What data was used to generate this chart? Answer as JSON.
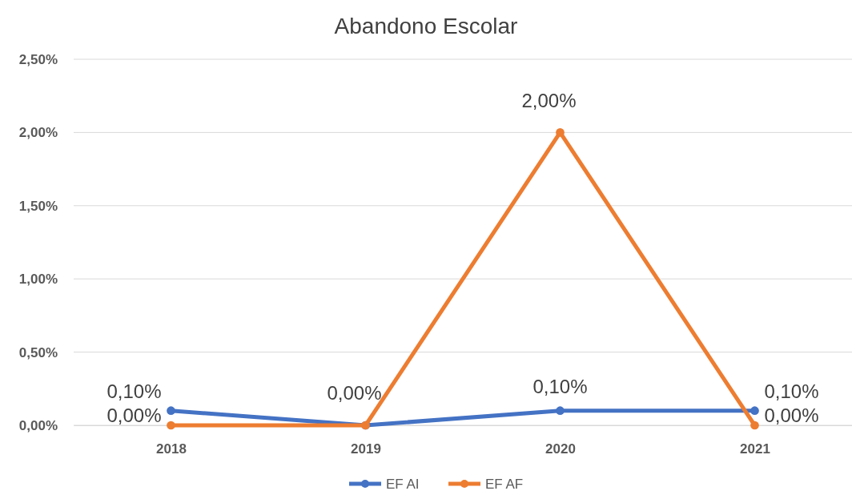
{
  "chart_data": {
    "type": "line",
    "title": "Abandono Escolar",
    "categories": [
      "2018",
      "2019",
      "2020",
      "2021"
    ],
    "series": [
      {
        "name": "EF AI",
        "color": "#4472c4",
        "values": [
          0.1,
          0,
          0.1,
          0.1
        ],
        "value_labels": [
          "0,10%",
          null,
          "0,10%",
          "0,10%"
        ]
      },
      {
        "name": "EF AF",
        "color": "#ed7d31",
        "values": [
          0,
          0,
          2,
          0
        ],
        "value_labels": [
          "0,00%",
          "0,00%",
          "2,00%",
          "0,00%"
        ]
      }
    ],
    "ylim": [
      0,
      2.5
    ],
    "yticks": [
      {
        "value": 0,
        "label": "0,00%"
      },
      {
        "value": 0.5,
        "label": "0,50%"
      },
      {
        "value": 1,
        "label": "1,00%"
      },
      {
        "value": 1.5,
        "label": "1,50%"
      },
      {
        "value": 2,
        "label": "2,00%"
      },
      {
        "value": 2.5,
        "label": "2,50%"
      }
    ],
    "grid": "y",
    "legend": "bottom",
    "marker": "circle",
    "line_style": "solid"
  }
}
